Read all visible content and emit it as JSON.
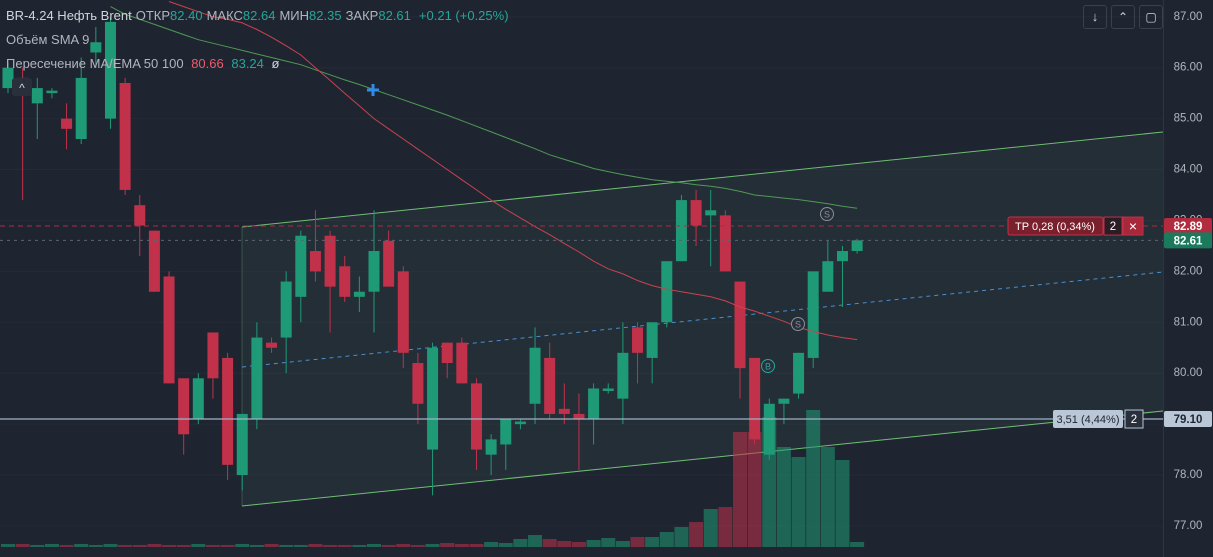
{
  "header": {
    "symbol": "BR-4.24 Нефть Brent",
    "fields": [
      {
        "label": "ОТКР",
        "value": "82.40"
      },
      {
        "label": "МАКС",
        "value": "82.64"
      },
      {
        "label": "МИН",
        "value": "82.35"
      },
      {
        "label": "ЗАКР",
        "value": "82.61"
      }
    ],
    "change": "+0.21 (+0.25%)"
  },
  "indicators": {
    "volume": "Объём SMA 9",
    "cross": {
      "name": "Пересечение MA/EMA 50 100",
      "values": [
        "80.66",
        "83.24"
      ],
      "symbol": "ø"
    }
  },
  "orders": {
    "tp": {
      "label": "TP 0,28 (0,34%)",
      "qty": "2",
      "close": "×"
    },
    "position": {
      "label": "3,51 (4,44%)",
      "qty": "2"
    }
  },
  "signals": [
    "S",
    "S",
    "B"
  ],
  "chart_data": {
    "type": "candlestick",
    "open": [
      85.6,
      85.8,
      85.3,
      85.5,
      85.0,
      84.6,
      86.3,
      85.0,
      85.7,
      83.3,
      82.8,
      81.9,
      79.9,
      79.1,
      80.8,
      80.3,
      78.0,
      79.1,
      80.6,
      80.7,
      81.5,
      82.4,
      82.7,
      82.1,
      81.5,
      81.6,
      82.6,
      82.0,
      80.2,
      78.5,
      80.6,
      80.6,
      79.8,
      78.4,
      78.6,
      79.0,
      79.4,
      80.3,
      79.3,
      79.2,
      79.1,
      79.65,
      79.5,
      80.9,
      80.3,
      81.0,
      82.2,
      83.4,
      83.1,
      83.1,
      81.8,
      80.3,
      78.4,
      79.4,
      79.6,
      80.3,
      81.6,
      82.2,
      82.4
    ],
    "high": [
      86.1,
      86.0,
      85.8,
      85.6,
      85.3,
      86.2,
      86.8,
      87.0,
      85.8,
      83.5,
      82.8,
      82.0,
      79.9,
      80.0,
      80.8,
      80.4,
      79.2,
      81.0,
      80.7,
      82.0,
      82.8,
      83.2,
      82.8,
      82.3,
      81.9,
      83.2,
      82.8,
      82.1,
      80.4,
      80.6,
      80.6,
      80.7,
      79.9,
      78.8,
      79.1,
      79.1,
      80.9,
      80.6,
      79.8,
      79.6,
      79.8,
      79.8,
      81.0,
      81.0,
      81.0,
      82.2,
      83.5,
      83.6,
      83.6,
      83.2,
      81.8,
      80.3,
      79.5,
      79.5,
      80.4,
      82.0,
      82.6,
      82.5,
      82.64
    ],
    "low": [
      85.5,
      83.4,
      84.6,
      85.4,
      84.4,
      84.5,
      86.0,
      84.8,
      83.5,
      82.3,
      81.6,
      79.8,
      78.4,
      79.0,
      79.5,
      77.9,
      77.7,
      78.9,
      80.4,
      80.0,
      81.0,
      81.8,
      80.8,
      81.4,
      81.2,
      80.8,
      81.7,
      80.1,
      79.0,
      77.6,
      79.9,
      79.8,
      78.1,
      78.0,
      78.1,
      78.9,
      79.0,
      79.1,
      79.0,
      78.1,
      78.6,
      79.6,
      79.0,
      79.8,
      79.8,
      80.9,
      82.2,
      82.5,
      82.1,
      82.0,
      79.5,
      78.6,
      78.3,
      79.0,
      79.5,
      80.1,
      81.6,
      81.3,
      82.35
    ],
    "close": [
      86.0,
      85.5,
      85.6,
      85.55,
      84.8,
      85.8,
      86.5,
      86.9,
      83.6,
      82.9,
      81.6,
      79.8,
      78.8,
      79.9,
      79.9,
      78.2,
      79.2,
      80.7,
      80.5,
      81.8,
      82.7,
      82.0,
      81.7,
      81.5,
      81.6,
      82.4,
      81.7,
      80.4,
      79.4,
      80.5,
      80.2,
      79.8,
      78.5,
      78.7,
      79.1,
      79.05,
      80.5,
      79.2,
      79.2,
      79.1,
      79.7,
      79.7,
      80.4,
      80.4,
      81.0,
      82.2,
      83.4,
      82.9,
      83.2,
      82.0,
      80.1,
      78.7,
      79.4,
      79.5,
      80.4,
      82.0,
      82.2,
      82.4,
      82.61
    ],
    "volume": [
      3,
      3,
      2,
      3,
      2,
      3,
      2,
      3,
      2,
      2,
      3,
      2,
      2,
      3,
      2,
      2,
      3,
      2,
      3,
      2,
      2,
      3,
      2,
      2,
      2,
      3,
      2,
      3,
      2,
      3,
      4,
      3,
      3,
      5,
      4,
      8,
      12,
      8,
      6,
      5,
      7,
      9,
      6,
      10,
      10,
      15,
      20,
      25,
      38,
      40,
      115,
      115,
      130,
      100,
      90,
      137,
      100,
      87,
      5
    ],
    "up_color": "#1f9a77",
    "down_color": "#c2314a",
    "lines": [
      {
        "color": "#4f9a55",
        "values": [
          null,
          null,
          null,
          null,
          null,
          null,
          null,
          87.2,
          87.05,
          86.95,
          86.85,
          86.75,
          86.65,
          86.55,
          86.48,
          86.41,
          86.34,
          86.27,
          86.2,
          86.13,
          86.06,
          85.96,
          85.86,
          85.76,
          85.67,
          85.57,
          85.47,
          85.37,
          85.27,
          85.17,
          85.07,
          84.96,
          84.85,
          84.74,
          84.63,
          84.52,
          84.41,
          84.29,
          84.2,
          84.11,
          84.02,
          83.96,
          83.9,
          83.85,
          83.8,
          83.77,
          83.74,
          83.7,
          83.67,
          83.63,
          83.57,
          83.5,
          83.47,
          83.44,
          83.41,
          83.37,
          83.33,
          83.28,
          83.24
        ]
      },
      {
        "color": "#c8434f",
        "values": [
          null,
          null,
          null,
          null,
          null,
          null,
          null,
          null,
          null,
          null,
          null,
          87.3,
          87.2,
          87.1,
          87.0,
          86.95,
          86.88,
          86.75,
          86.6,
          86.43,
          86.25,
          86.0,
          85.75,
          85.5,
          85.25,
          85.0,
          84.8,
          84.6,
          84.4,
          84.2,
          84.0,
          83.8,
          83.6,
          83.4,
          83.22,
          83.05,
          82.88,
          82.72,
          82.55,
          82.38,
          82.2,
          82.05,
          81.95,
          81.82,
          81.72,
          81.65,
          81.6,
          81.55,
          81.5,
          81.42,
          81.3,
          81.22,
          81.12,
          81.02,
          80.9,
          80.82,
          80.75,
          80.7,
          80.66
        ]
      }
    ],
    "price_marks": [
      {
        "value": 82.89,
        "label": "82.89",
        "color": "#b22b3e"
      },
      {
        "value": 82.61,
        "label": "82.61",
        "color": "#1b7a5c"
      },
      {
        "value": 79.1,
        "label": "79.10",
        "color": "#b9c7d6"
      }
    ],
    "ylim": [
      76.39,
      87.33
    ],
    "yticks": [
      {
        "value": 77,
        "label": "77.00"
      },
      {
        "value": 78,
        "label": "78.00"
      },
      {
        "value": 79,
        "label": "79.00"
      },
      {
        "value": 80,
        "label": "80.00"
      },
      {
        "value": 81,
        "label": "81.00"
      },
      {
        "value": 82,
        "label": "82.00"
      },
      {
        "value": 83,
        "label": "83.00"
      },
      {
        "value": 84,
        "label": "84.00"
      },
      {
        "value": 85,
        "label": "85.00"
      },
      {
        "value": 86,
        "label": "86.00"
      },
      {
        "value": 87,
        "label": "87.00"
      }
    ],
    "grid": true
  }
}
